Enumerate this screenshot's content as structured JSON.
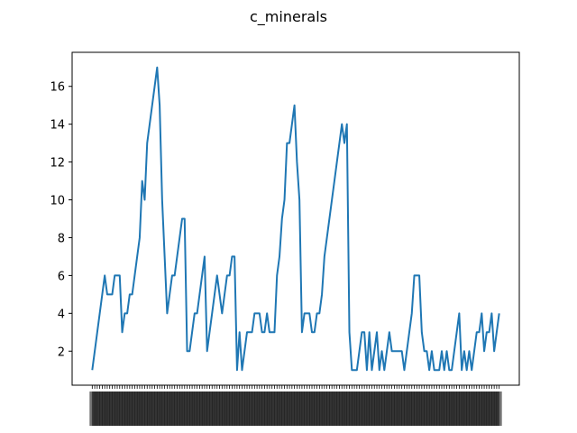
{
  "chart_data": {
    "type": "line",
    "title": "c_minerals",
    "xlabel": "",
    "ylabel": "",
    "ylim": [
      0.2,
      17.8
    ],
    "yticks": [
      2,
      4,
      6,
      8,
      10,
      12,
      14,
      16
    ],
    "grid": false,
    "legend": "none",
    "series_color": "#1f77b4",
    "x_tick_labels_legible": false,
    "series": [
      {
        "values": [
          1,
          2,
          3,
          4,
          5,
          6,
          5,
          5,
          5,
          6,
          6,
          6,
          3,
          4,
          4,
          5,
          5,
          6,
          7,
          8,
          11,
          10,
          13,
          14,
          15,
          16,
          17,
          15,
          10,
          7,
          4,
          5,
          6,
          6,
          7,
          8,
          9,
          9,
          2,
          2,
          3,
          4,
          4,
          5,
          6,
          7,
          2,
          3,
          4,
          5,
          6,
          5,
          4,
          5,
          6,
          6,
          7,
          7,
          1,
          3,
          1,
          2,
          3,
          3,
          3,
          4,
          4,
          4,
          3,
          3,
          4,
          3,
          3,
          3,
          6,
          7,
          9,
          10,
          13,
          13,
          14,
          15,
          12,
          10,
          3,
          4,
          4,
          4,
          3,
          3,
          4,
          4,
          5,
          7,
          8,
          9,
          10,
          11,
          12,
          13,
          14,
          13,
          14,
          3,
          1,
          1,
          1,
          2,
          3,
          3,
          1,
          3,
          1,
          2,
          3,
          1,
          2,
          1,
          2,
          3,
          2,
          2,
          2,
          2,
          2,
          1,
          2,
          3,
          4,
          6,
          6,
          6,
          3,
          2,
          2,
          1,
          2,
          1,
          1,
          1,
          2,
          1,
          2,
          1,
          1,
          2,
          3,
          4,
          1,
          2,
          1,
          2,
          1,
          2,
          3,
          3,
          4,
          2,
          3,
          3,
          4,
          2,
          3,
          4
        ]
      }
    ]
  }
}
